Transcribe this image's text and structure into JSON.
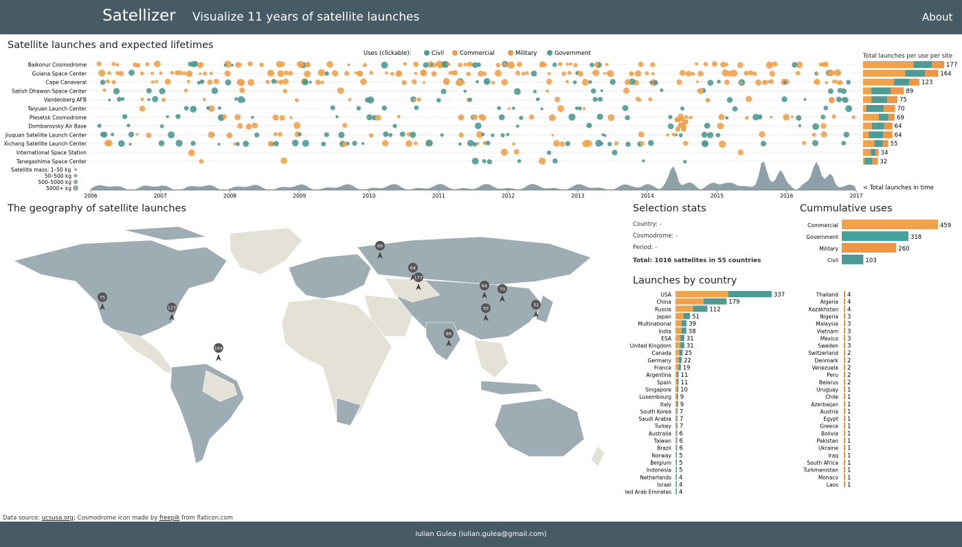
{
  "header": {
    "brand": "Satellizer",
    "tagline": "Visualize 11 years of satellite launches",
    "about": "About"
  },
  "colors": {
    "header": "#465b66",
    "commercial": "#f2a24b",
    "military": "#ef9643",
    "civil": "#4e9a94",
    "government": "#44a39e",
    "land": "#9dadb3",
    "other_land": "#e4e2d6"
  },
  "timeline": {
    "title": "Satellite launches and expected lifetimes",
    "legend_prefix": "Uses (clickable):",
    "uses": [
      {
        "label": "Civil",
        "color": "#4e9a94"
      },
      {
        "label": "Commercial",
        "color": "#f2a24b"
      },
      {
        "label": "Military",
        "color": "#ef9643"
      },
      {
        "label": "Government",
        "color": "#44a39e"
      }
    ],
    "sites": [
      "Baikonur Cosmodrome",
      "Guiana Space Center",
      "Cape Canaveral",
      "Satish Dhawan Space Center",
      "Vandenberg AFB",
      "Taiyuan Launch Center",
      "Plesetsk Cosmodrome",
      "Dombarovsky Air Base",
      "Jiuquan Satellite Launch Center",
      "Xichang Satellite Launch Center",
      "International Space Station",
      "Tanegashima Space Center"
    ],
    "years": [
      "2006",
      "2007",
      "2008",
      "2009",
      "2010",
      "2011",
      "2012",
      "2013",
      "2014",
      "2015",
      "2016",
      "2017"
    ],
    "mass_legend_title": "Satellite mass:",
    "mass_legend": [
      "1–50 kg",
      "50–500 kg",
      "500–5000 kg",
      "5000+ kg"
    ],
    "area_label": "< Total launches in time",
    "per_site_title": "Total launches per use per site",
    "per_site_totals": [
      177,
      164,
      123,
      89,
      75,
      70,
      69,
      64,
      64,
      55,
      34,
      32
    ]
  },
  "geo": {
    "title": "The geography of satellite launches",
    "markers": [
      {
        "value": "69"
      },
      {
        "value": "64"
      },
      {
        "value": "177"
      },
      {
        "value": "75"
      },
      {
        "value": "123"
      },
      {
        "value": "64"
      },
      {
        "value": "70"
      },
      {
        "value": "55"
      },
      {
        "value": "32"
      },
      {
        "value": "89"
      },
      {
        "value": "164"
      }
    ]
  },
  "stats": {
    "title": "Selection stats",
    "country": "Country: -",
    "cosmodrome": "Cosmodrome: -",
    "period": "Period: -",
    "total": "Total: 1016 sattelites in 55 countries"
  },
  "uses_chart": {
    "title": "Cummulative uses",
    "bars": [
      {
        "label": "Commercial",
        "value": 459
      },
      {
        "label": "Government",
        "value": 318
      },
      {
        "label": "Military",
        "value": 260
      },
      {
        "label": "Civil",
        "value": 103
      }
    ]
  },
  "country_chart": {
    "title": "Launches by country",
    "left": [
      [
        "USA",
        337
      ],
      [
        "China",
        179
      ],
      [
        "Russia",
        112
      ],
      [
        "Japan",
        51
      ],
      [
        "Multinational",
        39
      ],
      [
        "India",
        38
      ],
      [
        "ESA",
        31
      ],
      [
        "United Kingdom",
        31
      ],
      [
        "Canada",
        25
      ],
      [
        "Germany",
        22
      ],
      [
        "France",
        19
      ],
      [
        "Argentina",
        11
      ],
      [
        "Spain",
        11
      ],
      [
        "Singapore",
        10
      ],
      [
        "Luxembourg",
        9
      ],
      [
        "Italy",
        9
      ],
      [
        "South Korea",
        7
      ],
      [
        "Saudi Arabia",
        7
      ],
      [
        "Turkey",
        7
      ],
      [
        "Australia",
        6
      ],
      [
        "Taiwan",
        6
      ],
      [
        "Brazil",
        6
      ],
      [
        "Norway",
        5
      ],
      [
        "Belgium",
        5
      ],
      [
        "Indonesia",
        5
      ],
      [
        "Netherlands",
        4
      ],
      [
        "Israel",
        4
      ],
      [
        "ted Arab Emirates",
        4
      ]
    ],
    "right": [
      [
        "Thailand",
        4
      ],
      [
        "Algeria",
        4
      ],
      [
        "Kazakhstan",
        4
      ],
      [
        "Nigeria",
        3
      ],
      [
        "Malaysia",
        3
      ],
      [
        "Vietnam",
        3
      ],
      [
        "Mexico",
        3
      ],
      [
        "Sweden",
        3
      ],
      [
        "Switzerland",
        2
      ],
      [
        "Denmark",
        2
      ],
      [
        "Venezuela",
        2
      ],
      [
        "Peru",
        2
      ],
      [
        "Belarus",
        2
      ],
      [
        "Uruguay",
        1
      ],
      [
        "Chile",
        1
      ],
      [
        "Azerbaijan",
        1
      ],
      [
        "Austria",
        1
      ],
      [
        "Egypt",
        1
      ],
      [
        "Greece",
        1
      ],
      [
        "Bolivia",
        1
      ],
      [
        "Pakistan",
        1
      ],
      [
        "Ukraine",
        1
      ],
      [
        "Iraq",
        1
      ],
      [
        "South Africa",
        1
      ],
      [
        "Turkmenistan",
        1
      ],
      [
        "Monaco",
        1
      ],
      [
        "Laos",
        1
      ]
    ]
  },
  "source": {
    "prefix": "Data source:",
    "link1": "ucsusa.org",
    "mid": "; Cosmodrome icon made by",
    "link2": "freepik",
    "suffix": "from flaticon.com"
  },
  "footer": {
    "text": "Iulian Gulea (iulian.gulea@gmail.com)"
  }
}
